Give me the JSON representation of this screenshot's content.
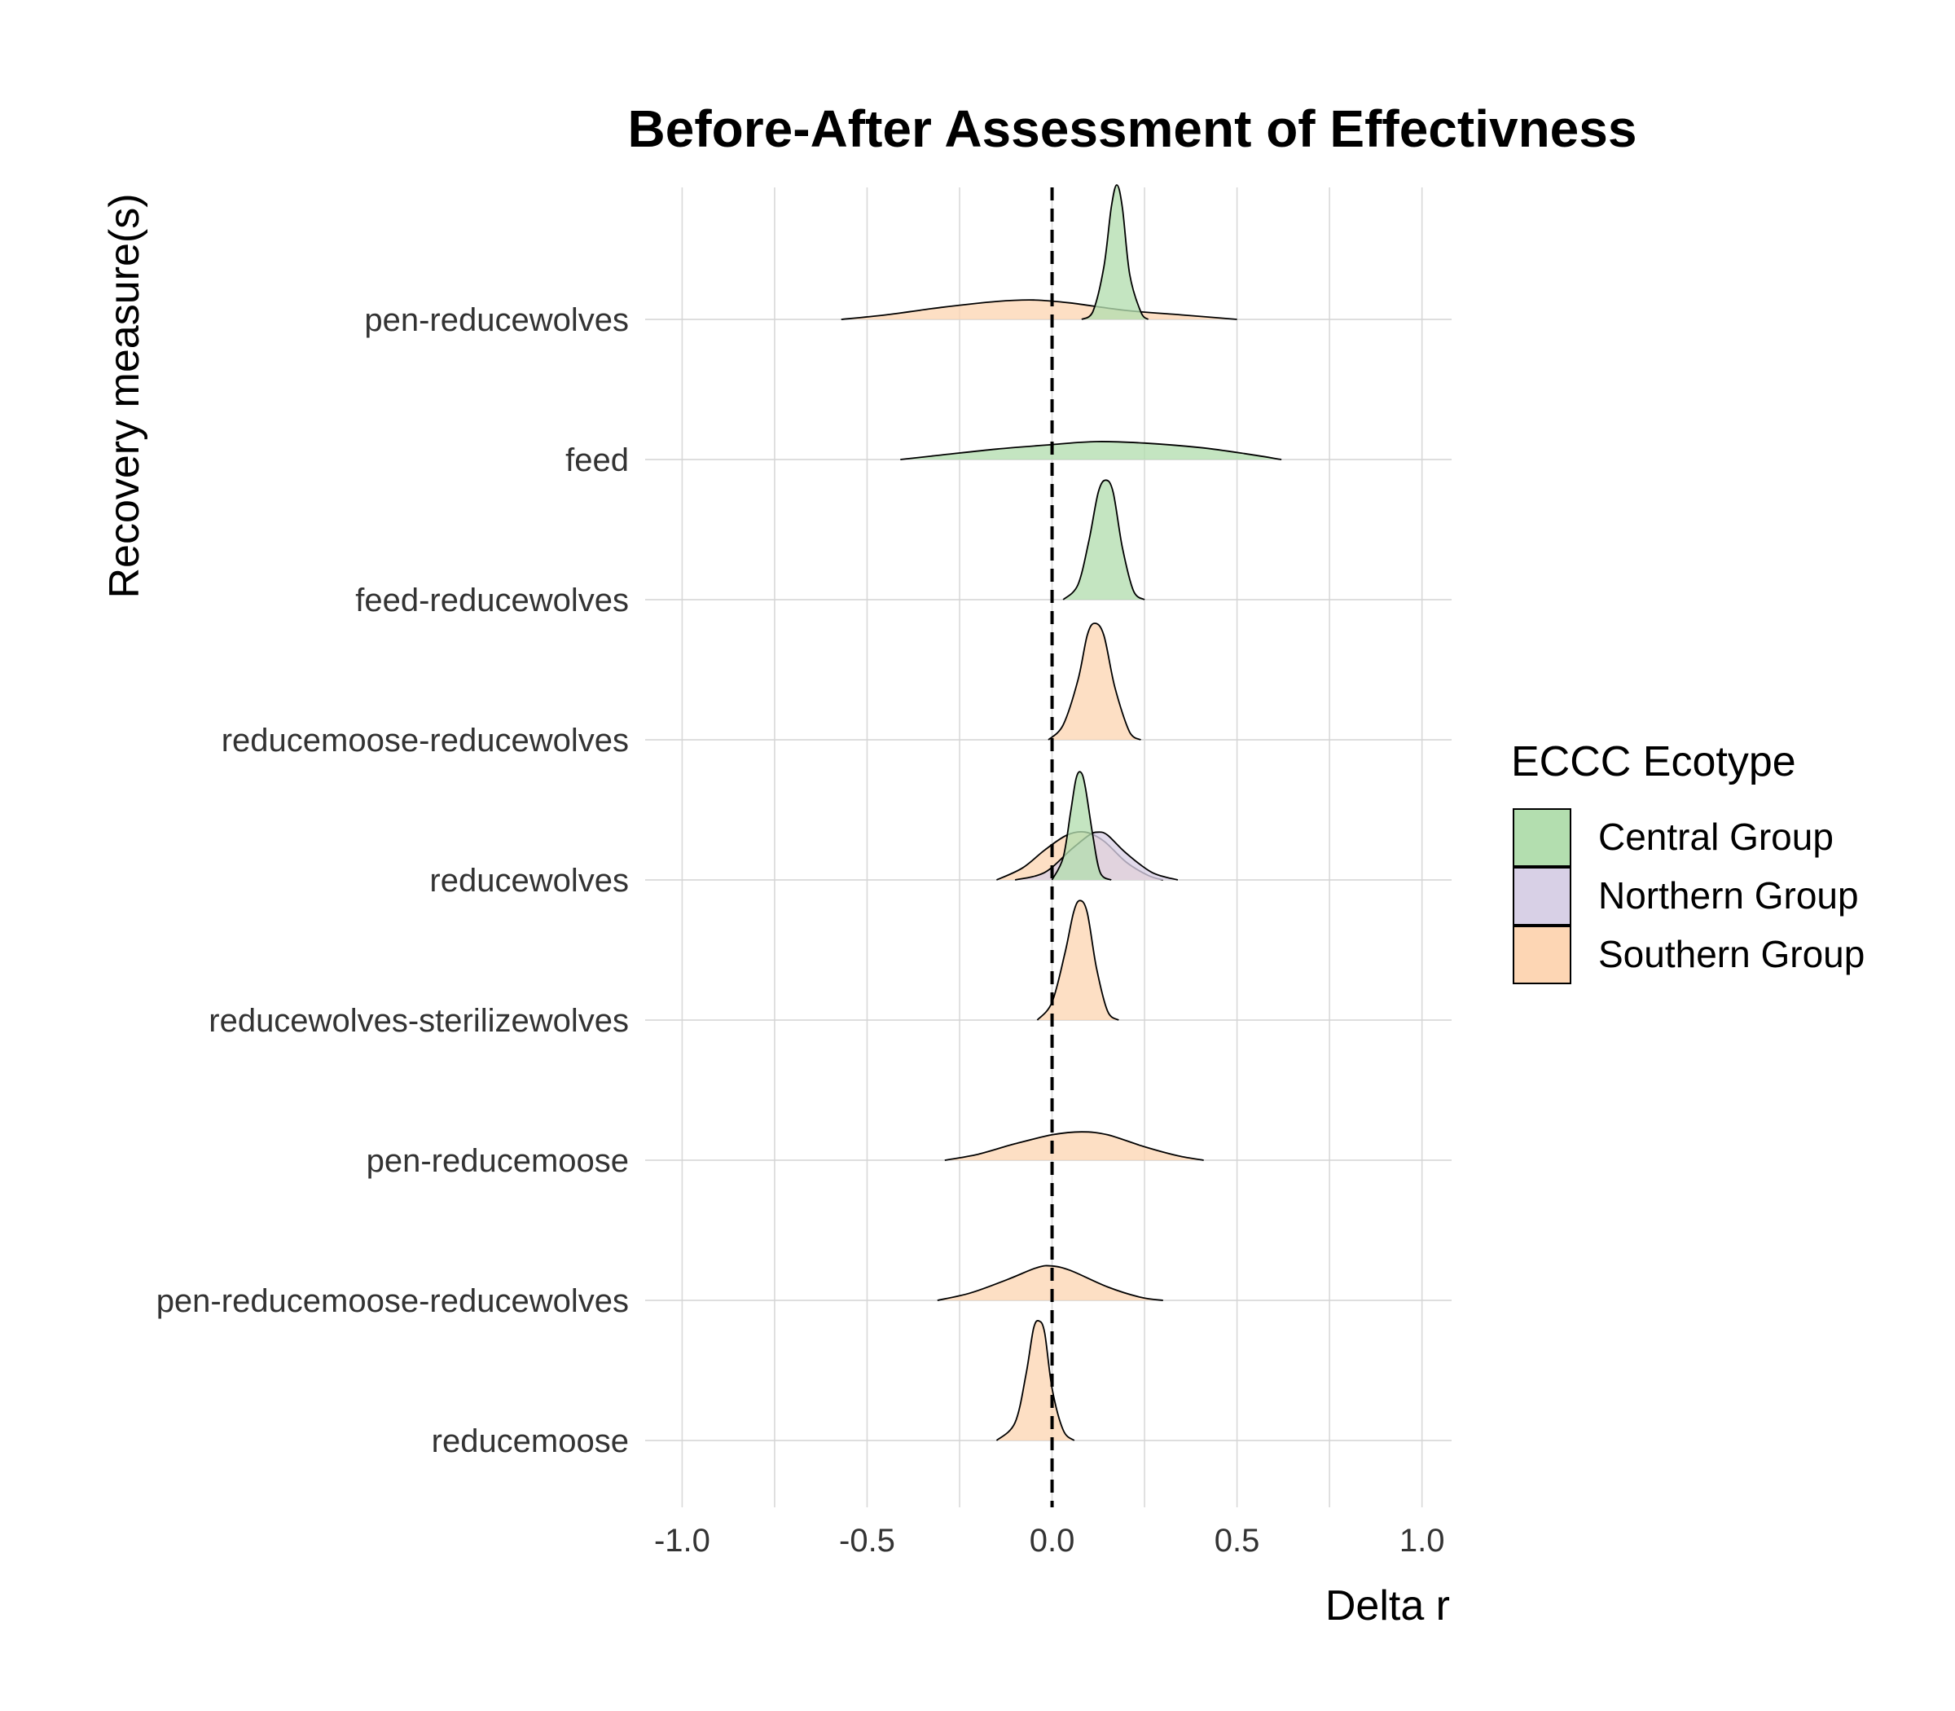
{
  "chart_data": {
    "type": "ridgeline-density",
    "title": "Before-After Assessment of Effectivness",
    "xlabel": "Delta r",
    "ylabel": "Recovery measure(s)",
    "xlim": [
      -1.1,
      1.08
    ],
    "x_ticks": [
      -1.0,
      -0.5,
      0.0,
      0.5,
      1.0
    ],
    "x_tick_labels": [
      "-1.0",
      "-0.5",
      "0.0",
      "0.5",
      "1.0"
    ],
    "reference_line": {
      "x": 0.0,
      "style": "dashed"
    },
    "grid": true,
    "legend": {
      "title": "ECCC Ecotype",
      "placement": "right",
      "entries": [
        {
          "name": "Central Group",
          "color": "#b3deaf"
        },
        {
          "name": "Northern Group",
          "color": "#d8d0e6"
        },
        {
          "name": "Southern Group",
          "color": "#fdd6b4"
        }
      ]
    },
    "categories": [
      "pen-reducewolves",
      "feed",
      "feed-reducewolves",
      "reducemoose-reducewolves",
      "reducewolves",
      "reducewolves-sterilizewolves",
      "pen-reducemoose",
      "pen-reducemoose-reducewolves",
      "reducemoose"
    ],
    "ridges": [
      {
        "category": "pen-reducewolves",
        "group": "Southern Group",
        "x": [
          -0.57,
          -0.45,
          -0.3,
          -0.15,
          -0.05,
          0.05,
          0.2,
          0.35,
          0.5
        ],
        "density": [
          0.0,
          0.03,
          0.08,
          0.12,
          0.13,
          0.11,
          0.06,
          0.03,
          0.0
        ]
      },
      {
        "category": "pen-reducewolves",
        "group": "Central Group",
        "x": [
          0.08,
          0.11,
          0.14,
          0.16,
          0.175,
          0.19,
          0.21,
          0.24,
          0.26
        ],
        "density": [
          0.0,
          0.05,
          0.35,
          0.75,
          0.9,
          0.75,
          0.3,
          0.05,
          0.0
        ]
      },
      {
        "category": "feed",
        "group": "Central Group",
        "x": [
          -0.41,
          -0.3,
          -0.15,
          0.0,
          0.12,
          0.25,
          0.4,
          0.52,
          0.62
        ],
        "density": [
          0.0,
          0.03,
          0.07,
          0.1,
          0.12,
          0.11,
          0.08,
          0.04,
          0.0
        ]
      },
      {
        "category": "feed-reducewolves",
        "group": "Central Group",
        "x": [
          0.03,
          0.07,
          0.1,
          0.125,
          0.145,
          0.165,
          0.19,
          0.22,
          0.25
        ],
        "density": [
          0.0,
          0.1,
          0.4,
          0.72,
          0.8,
          0.72,
          0.35,
          0.06,
          0.0
        ]
      },
      {
        "category": "reducemoose-reducewolves",
        "group": "Southern Group",
        "x": [
          -0.01,
          0.03,
          0.07,
          0.095,
          0.115,
          0.14,
          0.17,
          0.21,
          0.24
        ],
        "density": [
          0.0,
          0.1,
          0.4,
          0.7,
          0.78,
          0.7,
          0.35,
          0.05,
          0.0
        ]
      },
      {
        "category": "reducewolves",
        "group": "Southern Group",
        "x": [
          -0.15,
          -0.08,
          -0.02,
          0.04,
          0.09,
          0.14,
          0.2,
          0.26,
          0.3
        ],
        "density": [
          0.0,
          0.08,
          0.2,
          0.3,
          0.32,
          0.26,
          0.12,
          0.03,
          0.0
        ]
      },
      {
        "category": "reducewolves",
        "group": "Northern Group",
        "x": [
          -0.1,
          -0.02,
          0.05,
          0.1,
          0.125,
          0.15,
          0.2,
          0.27,
          0.34
        ],
        "density": [
          0.0,
          0.05,
          0.2,
          0.3,
          0.32,
          0.3,
          0.18,
          0.05,
          0.0
        ]
      },
      {
        "category": "reducewolves",
        "group": "Central Group",
        "x": [
          0.0,
          0.03,
          0.05,
          0.065,
          0.078,
          0.09,
          0.11,
          0.13,
          0.16
        ],
        "density": [
          0.0,
          0.15,
          0.45,
          0.68,
          0.72,
          0.62,
          0.3,
          0.05,
          0.0
        ]
      },
      {
        "category": "reducewolves-sterilizewolves",
        "group": "Southern Group",
        "x": [
          -0.04,
          0.0,
          0.035,
          0.058,
          0.075,
          0.095,
          0.12,
          0.15,
          0.18
        ],
        "density": [
          0.0,
          0.12,
          0.45,
          0.72,
          0.8,
          0.72,
          0.35,
          0.06,
          0.0
        ]
      },
      {
        "category": "pen-reducemoose",
        "group": "Southern Group",
        "x": [
          -0.29,
          -0.2,
          -0.1,
          0.0,
          0.08,
          0.15,
          0.25,
          0.34,
          0.41
        ],
        "density": [
          0.0,
          0.04,
          0.11,
          0.17,
          0.19,
          0.17,
          0.09,
          0.03,
          0.0
        ]
      },
      {
        "category": "pen-reducemoose-reducewolves",
        "group": "Southern Group",
        "x": [
          -0.31,
          -0.22,
          -0.12,
          -0.04,
          0.0,
          0.05,
          0.15,
          0.24,
          0.3
        ],
        "density": [
          0.0,
          0.05,
          0.14,
          0.22,
          0.23,
          0.2,
          0.09,
          0.02,
          0.0
        ]
      },
      {
        "category": "reducemoose",
        "group": "Southern Group",
        "x": [
          -0.15,
          -0.1,
          -0.07,
          -0.05,
          -0.035,
          -0.02,
          0.0,
          0.03,
          0.06
        ],
        "density": [
          0.0,
          0.12,
          0.45,
          0.75,
          0.8,
          0.72,
          0.35,
          0.07,
          0.0
        ]
      }
    ]
  }
}
